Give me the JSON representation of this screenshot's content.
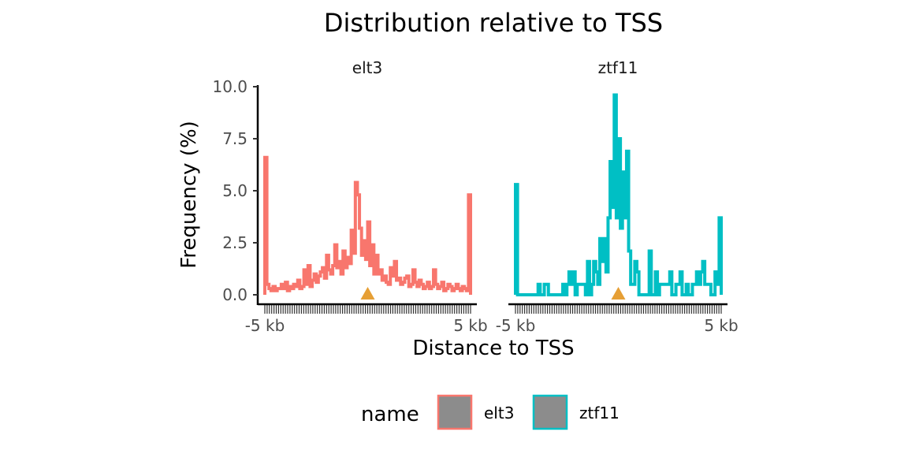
{
  "chart_data": {
    "type": "line",
    "title": "Distribution relative to TSS",
    "xlabel": "Distance to TSS",
    "ylabel": "Frequency (%)",
    "xlim_kb": [
      -5,
      5
    ],
    "ylim": [
      0,
      10
    ],
    "y_ticks": [
      0,
      2.5,
      5,
      7.5,
      10
    ],
    "y_tick_labels": [
      "0.0",
      "2.5",
      "5.0",
      "7.5",
      "10.0"
    ],
    "x_tick_labels": [
      "-5 kb",
      "5 kb"
    ],
    "tss_marker_color": "#E69F35",
    "legend": {
      "title": "name",
      "position": "bottom",
      "fill": "#8C8C8C"
    },
    "series": [
      {
        "name": "elt3",
        "color": "#F8766D",
        "x": [
          -4.95,
          -4.85,
          -4.75,
          -4.65,
          -4.55,
          -4.45,
          -4.35,
          -4.25,
          -4.15,
          -4.05,
          -3.95,
          -3.85,
          -3.75,
          -3.65,
          -3.55,
          -3.45,
          -3.35,
          -3.25,
          -3.15,
          -3.05,
          -2.95,
          -2.85,
          -2.75,
          -2.65,
          -2.55,
          -2.45,
          -2.35,
          -2.25,
          -2.15,
          -2.05,
          -1.95,
          -1.85,
          -1.75,
          -1.65,
          -1.55,
          -1.45,
          -1.35,
          -1.25,
          -1.15,
          -1.05,
          -0.95,
          -0.85,
          -0.75,
          -0.65,
          -0.55,
          -0.45,
          -0.35,
          -0.25,
          -0.15,
          -0.05,
          0.05,
          0.15,
          0.25,
          0.35,
          0.45,
          0.55,
          0.65,
          0.75,
          0.85,
          0.95,
          1.05,
          1.15,
          1.25,
          1.35,
          1.45,
          1.55,
          1.65,
          1.75,
          1.85,
          1.95,
          2.05,
          2.15,
          2.25,
          2.35,
          2.45,
          2.55,
          2.65,
          2.75,
          2.85,
          2.95,
          3.05,
          3.15,
          3.25,
          3.35,
          3.45,
          3.55,
          3.65,
          3.75,
          3.85,
          3.95,
          4.05,
          4.15,
          4.25,
          4.35,
          4.45,
          4.55,
          4.65,
          4.75,
          4.85,
          4.95
        ],
        "values": [
          6.6,
          0.5,
          0.3,
          0.2,
          0.4,
          0.2,
          0.3,
          0.3,
          0.5,
          0.3,
          0.6,
          0.2,
          0.4,
          0.3,
          0.5,
          0.4,
          0.7,
          0.3,
          0.4,
          1.2,
          0.5,
          1.4,
          0.4,
          0.7,
          1.0,
          0.6,
          0.9,
          1.1,
          1.3,
          0.8,
          1.9,
          1.2,
          1.0,
          1.4,
          2.4,
          1.3,
          1.6,
          1.0,
          2.1,
          1.3,
          1.8,
          1.5,
          3.1,
          2.0,
          5.4,
          4.8,
          3.2,
          1.9,
          2.6,
          1.7,
          3.5,
          1.4,
          2.4,
          1.0,
          1.9,
          1.0,
          1.2,
          0.7,
          0.9,
          0.6,
          0.5,
          1.3,
          0.9,
          1.6,
          0.7,
          0.8,
          0.5,
          0.6,
          0.8,
          0.9,
          0.4,
          0.5,
          1.2,
          0.6,
          0.4,
          0.7,
          0.5,
          0.3,
          0.4,
          0.6,
          0.3,
          0.4,
          1.2,
          0.5,
          0.3,
          0.4,
          0.6,
          0.2,
          0.3,
          0.5,
          0.4,
          0.2,
          0.3,
          0.5,
          0.3,
          0.2,
          0.4,
          0.3,
          0.2,
          4.8
        ]
      },
      {
        "name": "ztf11",
        "color": "#00BFC4",
        "x": [
          -4.95,
          -4.85,
          -4.75,
          -4.65,
          -4.55,
          -4.45,
          -4.35,
          -4.25,
          -4.15,
          -4.05,
          -3.95,
          -3.85,
          -3.75,
          -3.65,
          -3.55,
          -3.45,
          -3.35,
          -3.25,
          -3.15,
          -3.05,
          -2.95,
          -2.85,
          -2.75,
          -2.65,
          -2.55,
          -2.45,
          -2.35,
          -2.25,
          -2.15,
          -2.05,
          -1.95,
          -1.85,
          -1.75,
          -1.65,
          -1.55,
          -1.45,
          -1.35,
          -1.25,
          -1.15,
          -1.05,
          -0.95,
          -0.85,
          -0.75,
          -0.65,
          -0.55,
          -0.45,
          -0.35,
          -0.25,
          -0.15,
          -0.05,
          0.05,
          0.15,
          0.25,
          0.35,
          0.45,
          0.55,
          0.65,
          0.75,
          0.85,
          0.95,
          1.05,
          1.15,
          1.25,
          1.35,
          1.45,
          1.55,
          1.65,
          1.75,
          1.85,
          1.95,
          2.05,
          2.15,
          2.25,
          2.35,
          2.45,
          2.55,
          2.65,
          2.75,
          2.85,
          2.95,
          3.05,
          3.15,
          3.25,
          3.35,
          3.45,
          3.55,
          3.65,
          3.75,
          3.85,
          3.95,
          4.05,
          4.15,
          4.25,
          4.35,
          4.45,
          4.55,
          4.65,
          4.75,
          4.85,
          4.95
        ],
        "values": [
          5.3,
          0,
          0,
          0,
          0,
          0,
          0,
          0,
          0,
          0,
          0,
          0.5,
          0,
          0,
          0.5,
          0.5,
          0,
          0,
          0,
          0,
          0,
          0,
          0,
          0.5,
          0,
          0.5,
          1.1,
          0.5,
          1.1,
          0,
          0.5,
          0.5,
          0.5,
          0.5,
          0,
          1.6,
          0,
          0.5,
          1.6,
          1.1,
          0.5,
          2.7,
          1.6,
          2.7,
          1.1,
          3.7,
          6.4,
          4.2,
          9.6,
          3.7,
          7.5,
          3.2,
          5.9,
          3.7,
          6.9,
          2.1,
          0.5,
          0.5,
          1.6,
          1.1,
          0,
          0,
          0,
          0,
          0,
          2.1,
          0,
          0,
          1.1,
          0,
          0.5,
          0.5,
          0.5,
          0.5,
          0.5,
          1.1,
          0,
          0,
          0.5,
          0.5,
          1.1,
          0,
          0,
          0.5,
          0,
          0,
          0.5,
          0.5,
          1.1,
          0.5,
          1.1,
          1.6,
          0.5,
          0.5,
          0.5,
          0,
          0,
          1.1,
          0.5,
          3.7
        ]
      }
    ]
  }
}
